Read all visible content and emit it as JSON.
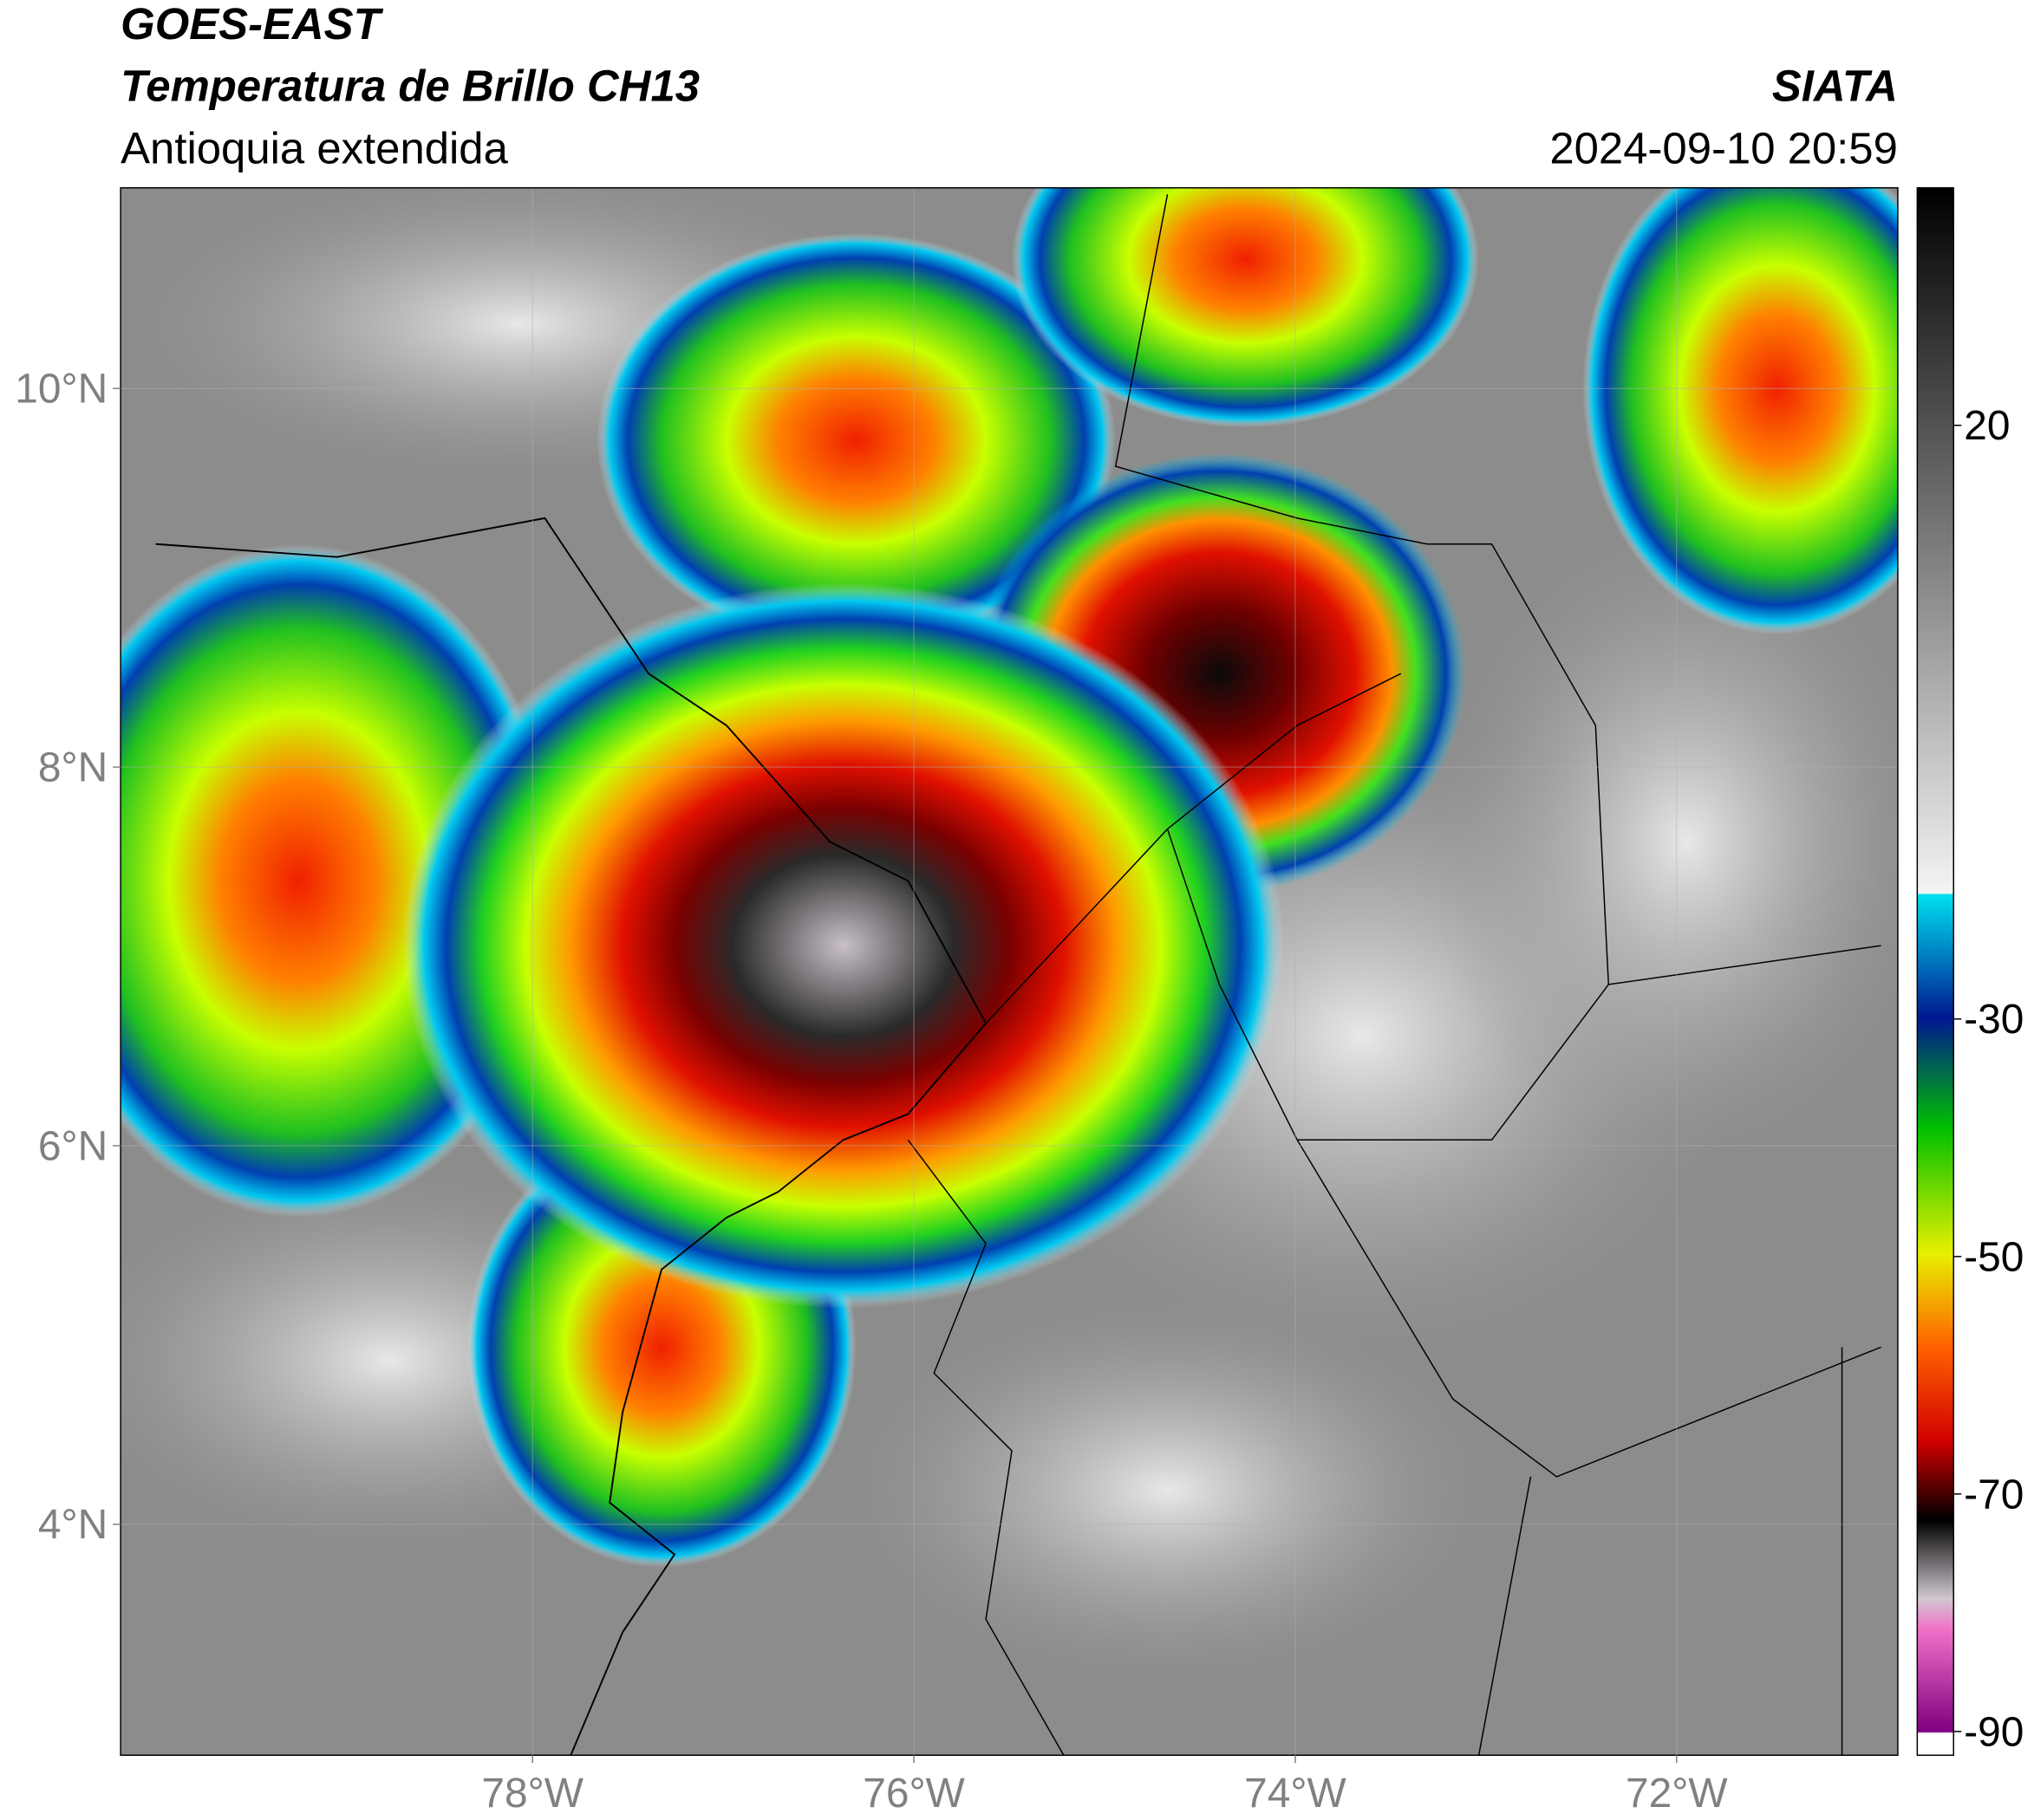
{
  "header": {
    "title": "GOES-EAST",
    "subtitle": "Temperatura de Brillo CH13",
    "region": "Antioquia extendida",
    "source": "SIATA",
    "datetime": "2024-09-10 20:59"
  },
  "map": {
    "xlim": [
      -80.16,
      -70.84
    ],
    "ylim": [
      2.78,
      11.06
    ],
    "xticks": [
      {
        "value": -78,
        "label": "78°W"
      },
      {
        "value": -76,
        "label": "76°W"
      },
      {
        "value": -74,
        "label": "74°W"
      },
      {
        "value": -72,
        "label": "72°W"
      }
    ],
    "yticks": [
      {
        "value": 4,
        "label": "4°N"
      },
      {
        "value": 6,
        "label": "6°N"
      },
      {
        "value": 8,
        "label": "8°N"
      },
      {
        "value": 10,
        "label": "10°N"
      }
    ],
    "grid": true,
    "colorbar": {
      "lim": [
        -92,
        40
      ],
      "ticks": [
        20,
        -30,
        -50,
        -70,
        -90
      ]
    }
  }
}
